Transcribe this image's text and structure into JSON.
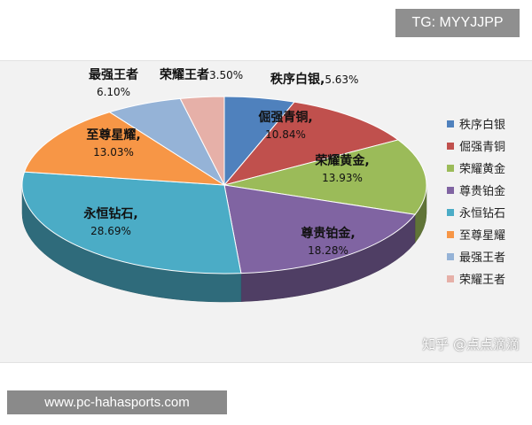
{
  "header_tag": "TG: MYYJJPP",
  "footer_url": "www.pc-hahasports.com",
  "watermark": "知乎 @点点滴滴",
  "chart_data": {
    "type": "pie",
    "title": "",
    "legend_position": "right",
    "slices": [
      {
        "name": "秩序白银",
        "value": 5.63,
        "label": "秩序白银,",
        "pct_label": "5.63%",
        "color": "#4f81bd"
      },
      {
        "name": "倔强青铜",
        "value": 10.84,
        "label": "倔强青铜,",
        "pct_label": "10.84%",
        "color": "#c0504d"
      },
      {
        "name": "荣耀黄金",
        "value": 13.93,
        "label": "荣耀黄金,",
        "pct_label": "13.93%",
        "color": "#9bbb59"
      },
      {
        "name": "尊贵铂金",
        "value": 18.28,
        "label": "尊贵铂金,",
        "pct_label": "18.28%",
        "color": "#8064a2"
      },
      {
        "name": "永恒钻石",
        "value": 28.69,
        "label": "永恒钻石,",
        "pct_label": "28.69%",
        "color": "#4bacc6"
      },
      {
        "name": "至尊星耀",
        "value": 13.03,
        "label": "至尊星耀,",
        "pct_label": "13.03%",
        "color": "#f79646"
      },
      {
        "name": "最强王者",
        "value": 6.1,
        "label": "最强王者",
        "pct_label": "6.10%",
        "color": "#95b3d7"
      },
      {
        "name": "荣耀王者",
        "value": 3.5,
        "label": "荣耀王者",
        "pct_label": "3.50%",
        "color": "#e6b0a8"
      }
    ]
  }
}
